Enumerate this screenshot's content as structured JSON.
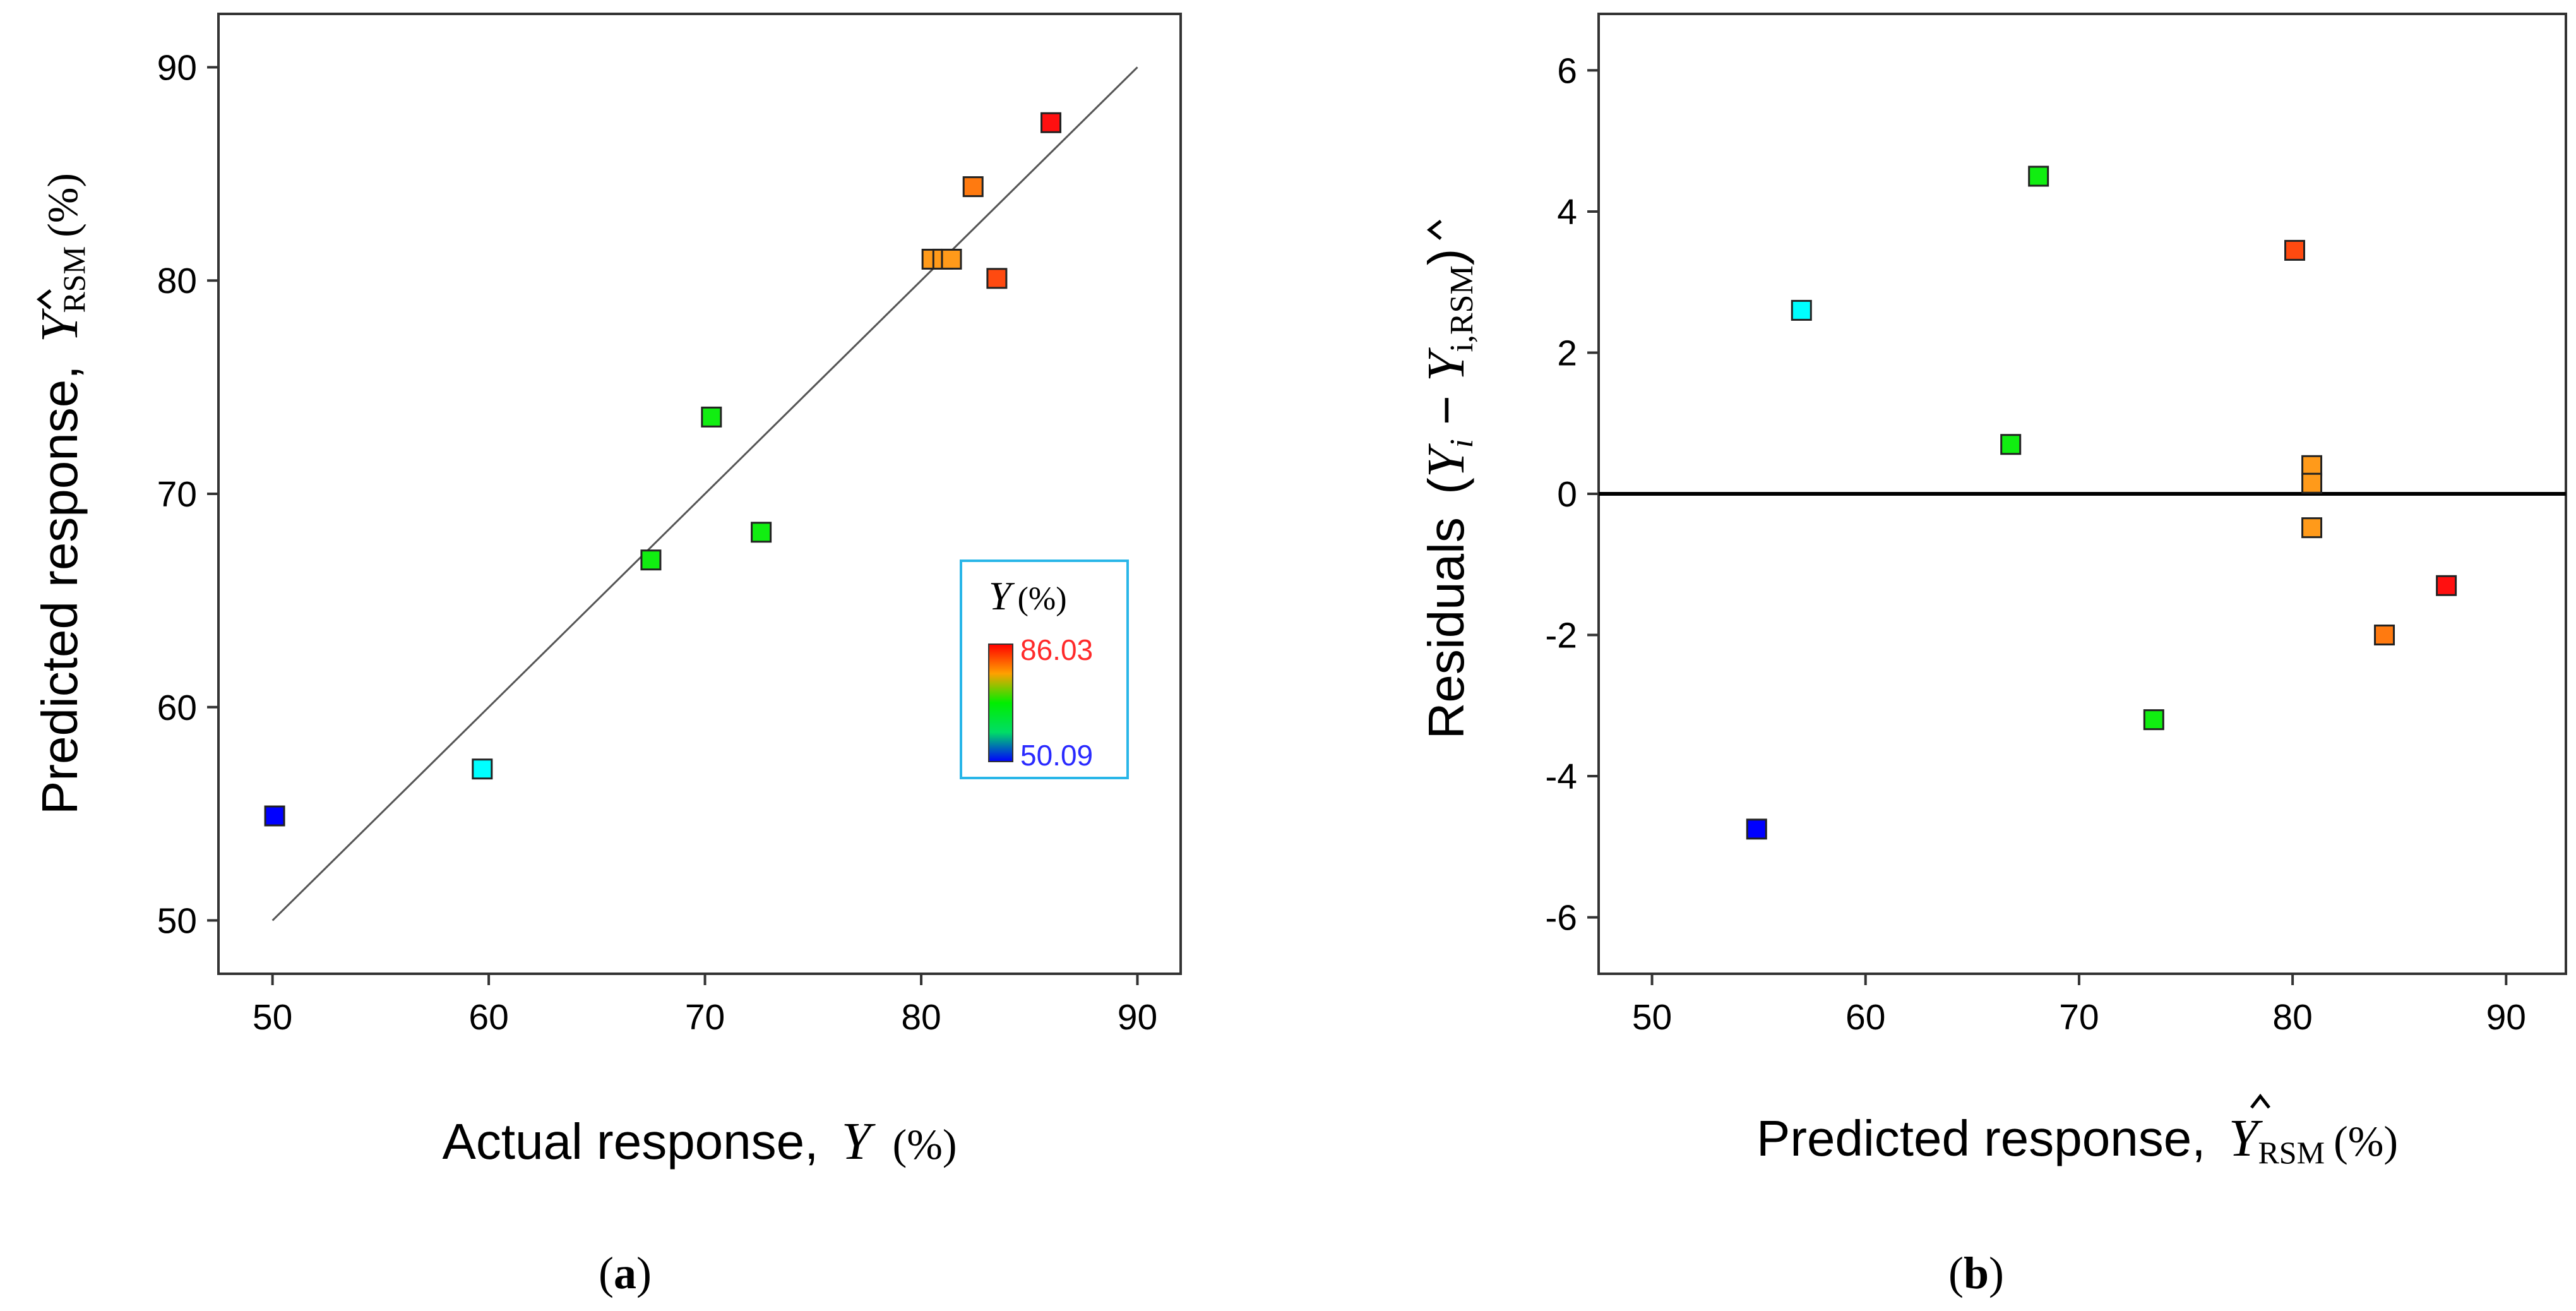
{
  "chart_data": [
    {
      "panel": "a",
      "type": "scatter",
      "panel_label_open": "(",
      "panel_label_letter": "a",
      "panel_label_close": ")",
      "xlabel_prefix": "Actual response,",
      "xlabel_symbol": "Y",
      "xlabel_unit": "(%)",
      "ylabel_prefix": "Predicted response,",
      "ylabel_symbol": "Y",
      "ylabel_sub": "RSM",
      "ylabel_unit": "(%)",
      "xlim": [
        47.5,
        92
      ],
      "ylim": [
        47.5,
        92.5
      ],
      "xticks": [
        50,
        60,
        70,
        80,
        90
      ],
      "yticks": [
        50,
        60,
        70,
        80,
        90
      ],
      "reference_line": {
        "x": [
          50,
          90
        ],
        "y": [
          50,
          90
        ]
      },
      "legend": {
        "title_symbol": "Y",
        "title_unit": "(%)",
        "max_label": "86.03",
        "min_label": "50.09",
        "max_value": 86.03,
        "min_value": 50.09,
        "max_color": "#ff2a2a",
        "min_color": "#2a2aff",
        "placement": "right-middle"
      },
      "points": [
        {
          "x": 50.1,
          "y": 54.9,
          "color": "#0000ff"
        },
        {
          "x": 59.7,
          "y": 57.1,
          "color": "#00ffff"
        },
        {
          "x": 67.5,
          "y": 66.9,
          "color": "#11ee11"
        },
        {
          "x": 70.3,
          "y": 73.6,
          "color": "#11ee11"
        },
        {
          "x": 72.6,
          "y": 68.2,
          "color": "#11ee11"
        },
        {
          "x": 80.5,
          "y": 81.0,
          "color": "#ff9a1a"
        },
        {
          "x": 81.0,
          "y": 81.0,
          "color": "#ff9a1a"
        },
        {
          "x": 81.4,
          "y": 81.0,
          "color": "#ff9a1a"
        },
        {
          "x": 82.4,
          "y": 84.4,
          "color": "#ff7a10"
        },
        {
          "x": 83.5,
          "y": 80.1,
          "color": "#ff4a10"
        },
        {
          "x": 86.0,
          "y": 87.4,
          "color": "#ff1010"
        }
      ]
    },
    {
      "panel": "b",
      "type": "scatter",
      "panel_label_open": "(",
      "panel_label_letter": "b",
      "panel_label_close": ")",
      "xlabel_prefix": "Predicted response,",
      "xlabel_symbol": "Y",
      "xlabel_sub": "RSM",
      "xlabel_unit": "(%)",
      "ylabel_prefix": "Residuals",
      "ylabel_open": "(",
      "ylabel_sym1": "Y",
      "ylabel_sub1": "i",
      "ylabel_minus": "−",
      "ylabel_sym2": "Y",
      "ylabel_sub2": "i,RSM",
      "ylabel_close": ")",
      "xlim": [
        47.5,
        92.8
      ],
      "ylim": [
        -6.8,
        6.8
      ],
      "xticks": [
        50,
        60,
        70,
        80,
        90
      ],
      "yticks": [
        -6,
        -4,
        -2,
        0,
        2,
        4,
        6
      ],
      "zero_line": 0,
      "points": [
        {
          "x": 54.9,
          "y": -4.75,
          "color": "#0000ff"
        },
        {
          "x": 57.0,
          "y": 2.6,
          "color": "#00ffff"
        },
        {
          "x": 66.8,
          "y": 0.7,
          "color": "#11ee11"
        },
        {
          "x": 68.1,
          "y": 4.5,
          "color": "#11ee11"
        },
        {
          "x": 73.5,
          "y": -3.2,
          "color": "#11ee11"
        },
        {
          "x": 80.1,
          "y": 3.45,
          "color": "#ff4a10"
        },
        {
          "x": 80.9,
          "y": 0.4,
          "color": "#ff9a1a"
        },
        {
          "x": 80.9,
          "y": 0.15,
          "color": "#ff9a1a"
        },
        {
          "x": 80.9,
          "y": -0.48,
          "color": "#ff9a1a"
        },
        {
          "x": 84.3,
          "y": -2.0,
          "color": "#ff7a10"
        },
        {
          "x": 87.2,
          "y": -1.3,
          "color": "#ff1010"
        }
      ]
    }
  ]
}
